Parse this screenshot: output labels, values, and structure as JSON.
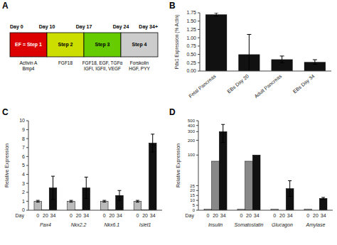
{
  "chart_data": [
    {
      "type": "timeline",
      "title": "A",
      "categories": [
        "EF = Step 1",
        "Step 2",
        "Step 3",
        "Step 4"
      ],
      "colors": [
        "#dd0000",
        "#ccdd00",
        "#66cc00",
        "#cccccc"
      ],
      "boundary_labels": [
        "Day 0",
        "Day 10",
        "Day 17",
        "Day 24",
        "Day 34+"
      ],
      "annotations": [
        "Activin A\nBmp4",
        "FGF18",
        "FGF18, EGF, TGFα\nIGFI, IGFII, VEGF",
        "Forskolin\nHGF, PYY"
      ]
    },
    {
      "type": "bar",
      "title": "B",
      "categories": [
        "Fetal Pancreas",
        "EBs Day 20",
        "Adult Pancreas",
        "EBs Day 34"
      ],
      "values": [
        1.7,
        0.5,
        0.35,
        0.27
      ],
      "errors": [
        0.05,
        0.6,
        0.1,
        0.07
      ],
      "color": "#111111",
      "ylabel": "Pdx1 Expression (% Actin)",
      "ylim": [
        0,
        1.75
      ],
      "yticks": [
        {
          "value": 0,
          "label": "0.00"
        },
        0.25,
        {
          "value": 0.5,
          "label": "0.50"
        },
        0.75,
        {
          "value": 1,
          "label": "1.00"
        },
        1.25,
        {
          "value": 1.5,
          "label": "1.50"
        },
        1.75
      ],
      "grid": false
    },
    {
      "type": "bar",
      "title": "C",
      "xlabel": "Day",
      "ylabel": "Relative Expression",
      "categories": [
        "Pax4",
        "Nkx2.2",
        "Nkx6.1",
        "Islet1"
      ],
      "series": [
        {
          "name": "0",
          "color": "#bbbbbb",
          "values": [
            1.0,
            1.0,
            1.0,
            1.0
          ],
          "errors": [
            0.1,
            0.1,
            0.1,
            0.1
          ]
        },
        {
          "name": "20",
          "color": "#888888",
          "values": [
            0.03,
            0.03,
            0.03,
            0.03
          ],
          "errors": [
            0.0,
            0.0,
            0.0,
            0.0
          ]
        },
        {
          "name": "34",
          "color": "#111111",
          "values": [
            2.5,
            2.5,
            1.65,
            7.5
          ],
          "errors": [
            1.3,
            1.2,
            0.55,
            1.0
          ]
        }
      ],
      "ylim": [
        0,
        10
      ],
      "yticks": [
        0,
        1,
        2,
        3,
        4,
        5,
        6,
        7,
        8,
        9,
        10
      ],
      "grid": false
    },
    {
      "type": "bar",
      "title": "D",
      "xlabel": "Day",
      "ylabel": "Relative Expression",
      "categories": [
        "Insulin",
        "Somatostatin",
        "Glucagon",
        "Amylase"
      ],
      "series": [
        {
          "name": "0",
          "color": "#bbbbbb",
          "values": [
            1.0,
            1.0,
            1.0,
            1.0
          ],
          "errors": [
            0.0,
            0.0,
            0.0,
            0.0
          ]
        },
        {
          "name": "20",
          "color": "#888888",
          "values": [
            75.0,
            75.0,
            0.0,
            0.0
          ],
          "errors": [
            0.0,
            0.0,
            0.0,
            0.0
          ]
        },
        {
          "name": "34",
          "color": "#111111",
          "values": [
            300.0,
            100.0,
            22.0,
            12.0
          ],
          "errors": [
            120.0,
            0.0,
            8.0,
            1.0
          ]
        }
      ],
      "log": "y",
      "ylim": [
        0,
        500
      ],
      "yticks": [
        0,
        5,
        10,
        15,
        20,
        25,
        100,
        200,
        300,
        400,
        500
      ],
      "grid": false
    }
  ]
}
